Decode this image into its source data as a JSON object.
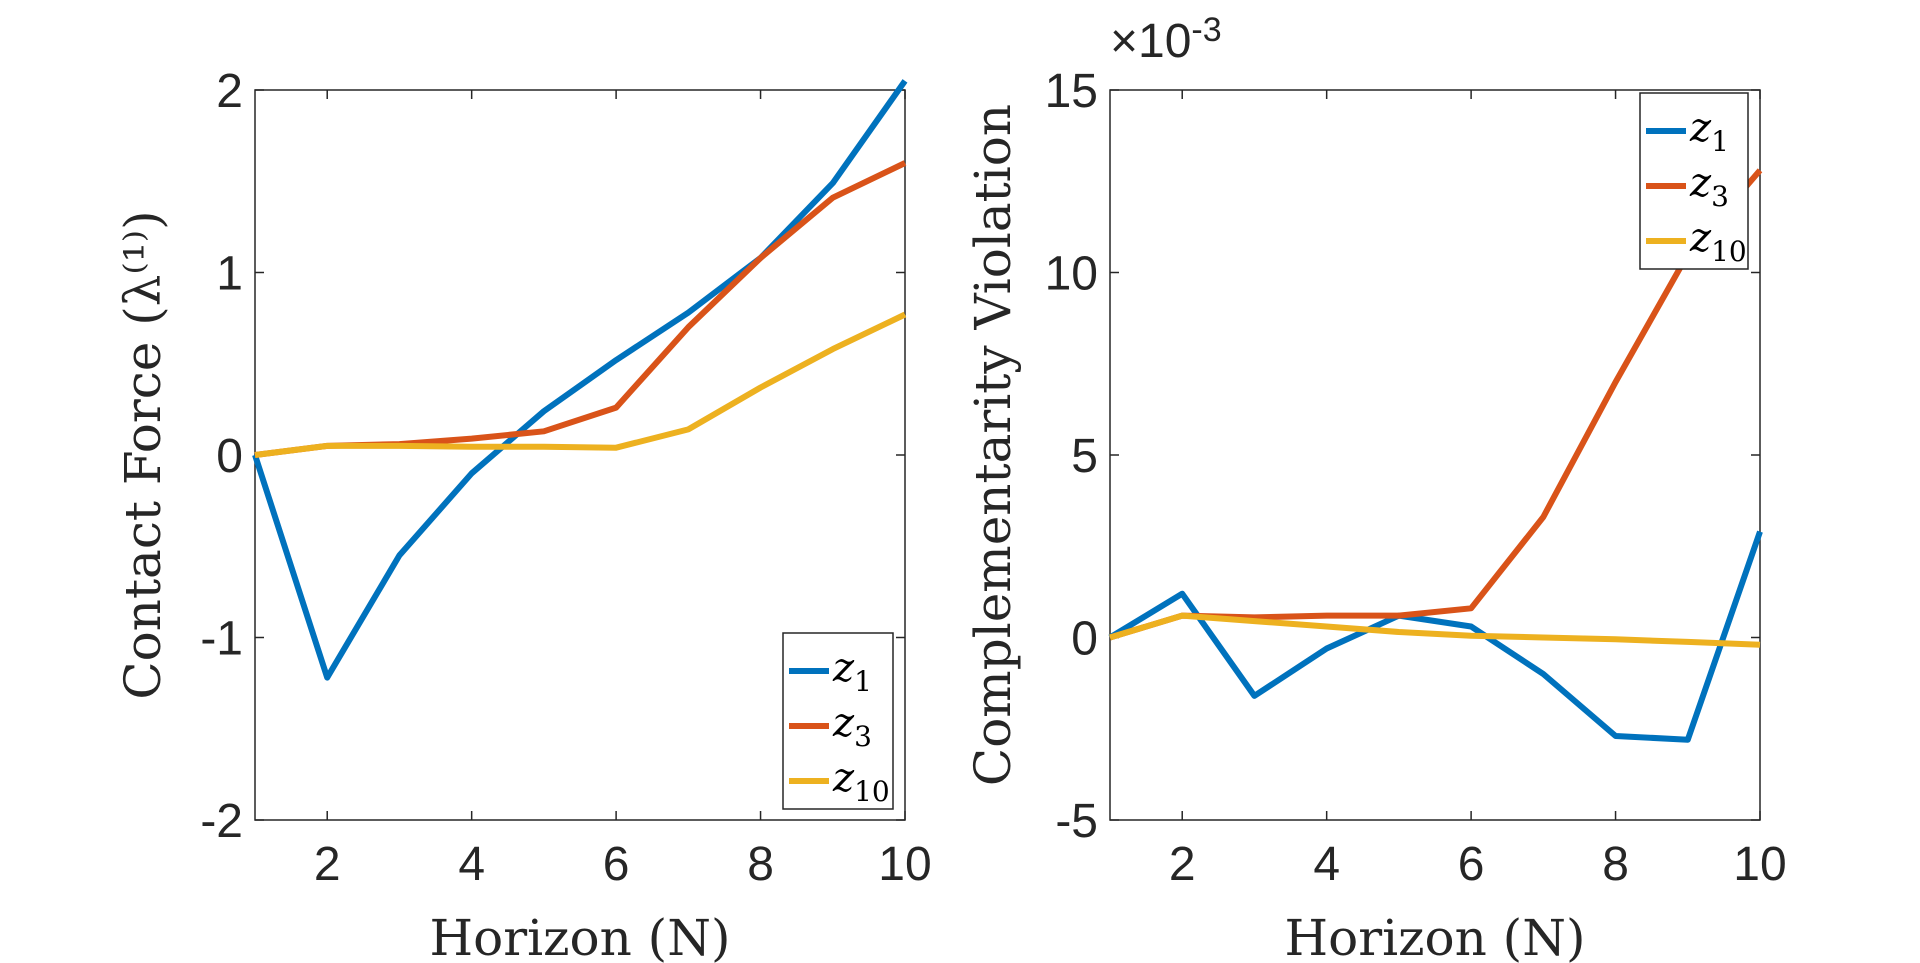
{
  "colors": {
    "z1": "#0072BD",
    "z3": "#D95319",
    "z10": "#EDB120",
    "axis": "#262626"
  },
  "chart_data": [
    {
      "type": "line",
      "x": [
        1,
        2,
        3,
        4,
        5,
        6,
        7,
        8,
        9,
        10
      ],
      "xlabel": "Horizon (N)",
      "ylabel": "Contact Force (λ⁽¹⁾)",
      "xlim": [
        1,
        10
      ],
      "ylim": [
        -2,
        2
      ],
      "xticks": [
        "2",
        "4",
        "6",
        "8",
        "10"
      ],
      "xtick_values": [
        2,
        4,
        6,
        8,
        10
      ],
      "yticks": [
        "-2",
        "-1",
        "0",
        "1",
        "2"
      ],
      "ytick_values": [
        -2,
        -1,
        0,
        1,
        2
      ],
      "legend_position": "bottom-right",
      "series": [
        {
          "name": "z1",
          "base": "z",
          "sub": "1",
          "values": [
            0,
            -1.22,
            -0.55,
            -0.1,
            0.24,
            0.52,
            0.78,
            1.08,
            1.49,
            2.05
          ]
        },
        {
          "name": "z3",
          "base": "z",
          "sub": "3",
          "values": [
            0,
            0.05,
            0.06,
            0.09,
            0.13,
            0.26,
            0.7,
            1.08,
            1.41,
            1.6
          ]
        },
        {
          "name": "z10",
          "base": "z",
          "sub": "10",
          "values": [
            0,
            0.05,
            0.05,
            0.045,
            0.045,
            0.04,
            0.14,
            0.37,
            0.58,
            0.77
          ]
        }
      ]
    },
    {
      "type": "line",
      "x": [
        1,
        2,
        3,
        4,
        5,
        6,
        7,
        8,
        9,
        10
      ],
      "xlabel": "Horizon (N)",
      "ylabel": "Complementarity Violation",
      "xlim": [
        1,
        10
      ],
      "ylim": [
        -5,
        15
      ],
      "scale_exponent": "×10",
      "scale_exponent_power": "-3",
      "xticks": [
        "2",
        "4",
        "6",
        "8",
        "10"
      ],
      "xtick_values": [
        2,
        4,
        6,
        8,
        10
      ],
      "yticks": [
        "-5",
        "0",
        "5",
        "10",
        "15"
      ],
      "ytick_values": [
        -5,
        0,
        5,
        10,
        15
      ],
      "legend_position": "top-right",
      "series": [
        {
          "name": "z1",
          "base": "z",
          "sub": "1",
          "values": [
            0,
            1.2,
            -1.6,
            -0.3,
            0.6,
            0.3,
            -1.0,
            -2.7,
            -2.8,
            2.9
          ]
        },
        {
          "name": "z3",
          "base": "z",
          "sub": "3",
          "values": [
            0,
            0.6,
            0.55,
            0.6,
            0.6,
            0.8,
            3.3,
            7.0,
            10.5,
            12.8
          ]
        },
        {
          "name": "z10",
          "base": "z",
          "sub": "10",
          "values": [
            0,
            0.6,
            0.45,
            0.3,
            0.15,
            0.05,
            0.0,
            -0.05,
            -0.12,
            -0.2
          ]
        }
      ]
    }
  ]
}
